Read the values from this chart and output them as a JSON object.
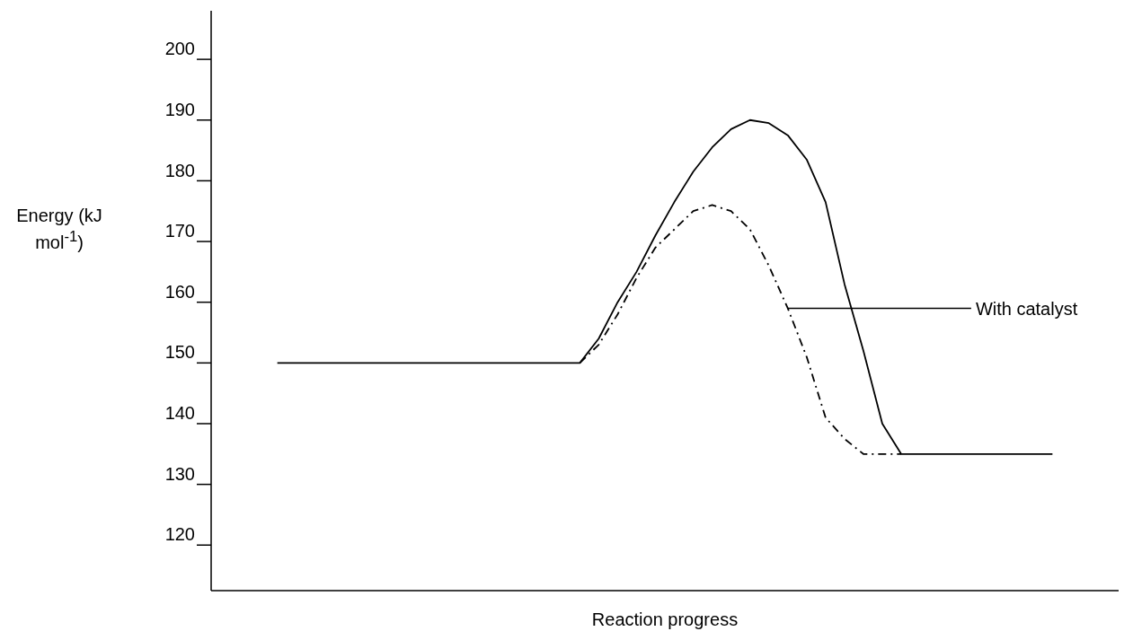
{
  "chart_data": {
    "type": "line",
    "xlabel": "Reaction progress",
    "ylabel": "Energy (kJ mol$^{-1}$)",
    "categories": [
      null,
      null,
      null,
      null,
      null,
      null,
      null,
      null,
      null,
      null,
      null,
      null,
      null,
      null,
      null,
      null,
      null,
      null,
      null,
      null,
      null,
      null,
      null,
      null,
      null,
      null,
      null,
      null,
      null,
      null,
      null,
      null,
      null,
      null,
      null,
      null,
      null,
      null,
      null,
      null,
      null,
      null,
      null,
      null,
      null,
      null,
      null,
      null
    ],
    "ylim": [
      112.5,
      208
    ],
    "yticks": [
      120,
      130,
      140,
      150,
      160,
      170,
      180,
      190,
      200
    ],
    "marker": "none",
    "series": [
      {
        "color": "#000000",
        "line_style": "solid",
        "values": [
          null,
          null,
          null,
          150,
          150,
          150,
          150,
          150,
          150,
          150,
          150,
          150,
          150,
          150,
          150,
          150,
          150,
          150,
          150,
          150,
          154,
          160,
          165,
          171,
          176.5,
          181.5,
          185.5,
          188.5,
          190,
          189.5,
          187.5,
          183.5,
          176.5,
          163,
          152,
          140,
          135,
          135,
          135,
          135,
          135,
          135,
          135,
          135,
          135,
          null,
          null,
          null
        ]
      },
      {
        "name": "With catalyst",
        "color": "#000000",
        "line_style": "dashed",
        "values": [
          null,
          null,
          null,
          null,
          null,
          null,
          null,
          null,
          null,
          null,
          null,
          null,
          null,
          null,
          null,
          null,
          null,
          null,
          null,
          150,
          153,
          158,
          164,
          169,
          172,
          175,
          176,
          175,
          172,
          166,
          159,
          151,
          141,
          137.5,
          135,
          135,
          135,
          null,
          null,
          null,
          null,
          null,
          null,
          null,
          null,
          null,
          null,
          null
        ]
      }
    ]
  }
}
